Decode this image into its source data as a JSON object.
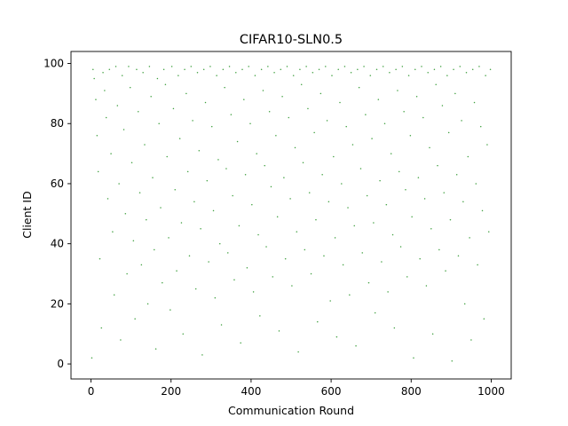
{
  "chart_data": {
    "type": "scatter",
    "title": "CIFAR10-SLN0.5",
    "xlabel": "Communication Round",
    "ylabel": "Client ID",
    "xlim": [
      -50,
      1050
    ],
    "ylim": [
      -5,
      104
    ],
    "xticks": [
      0,
      200,
      400,
      600,
      800,
      1000
    ],
    "yticks": [
      0,
      20,
      40,
      60,
      80,
      100
    ],
    "grid": false,
    "marker_color": "#008000",
    "series": [
      {
        "rounds": [
          0,
          999
        ],
        "client_ids": [
          0,
          99
        ],
        "density_note": "Client IDs near 99 are sampled almost every round; density decreases toward 0.",
        "points": [
          [
            2,
            2
          ],
          [
            5,
            98
          ],
          [
            8,
            95
          ],
          [
            12,
            88
          ],
          [
            15,
            76
          ],
          [
            18,
            64
          ],
          [
            22,
            35
          ],
          [
            26,
            12
          ],
          [
            30,
            97
          ],
          [
            34,
            91
          ],
          [
            38,
            82
          ],
          [
            42,
            55
          ],
          [
            46,
            98
          ],
          [
            50,
            70
          ],
          [
            54,
            44
          ],
          [
            58,
            23
          ],
          [
            62,
            99
          ],
          [
            66,
            86
          ],
          [
            70,
            60
          ],
          [
            74,
            8
          ],
          [
            78,
            96
          ],
          [
            82,
            78
          ],
          [
            86,
            50
          ],
          [
            90,
            30
          ],
          [
            94,
            99
          ],
          [
            98,
            92
          ],
          [
            102,
            67
          ],
          [
            106,
            41
          ],
          [
            110,
            15
          ],
          [
            114,
            98
          ],
          [
            118,
            84
          ],
          [
            122,
            57
          ],
          [
            126,
            33
          ],
          [
            130,
            97
          ],
          [
            134,
            73
          ],
          [
            138,
            48
          ],
          [
            142,
            20
          ],
          [
            146,
            99
          ],
          [
            150,
            89
          ],
          [
            154,
            62
          ],
          [
            158,
            38
          ],
          [
            162,
            5
          ],
          [
            166,
            95
          ],
          [
            170,
            80
          ],
          [
            174,
            52
          ],
          [
            178,
            27
          ],
          [
            182,
            98
          ],
          [
            186,
            93
          ],
          [
            190,
            69
          ],
          [
            194,
            42
          ],
          [
            198,
            18
          ],
          [
            202,
            99
          ],
          [
            206,
            85
          ],
          [
            210,
            58
          ],
          [
            214,
            31
          ],
          [
            218,
            96
          ],
          [
            222,
            75
          ],
          [
            226,
            47
          ],
          [
            230,
            10
          ],
          [
            234,
            98
          ],
          [
            238,
            90
          ],
          [
            242,
            64
          ],
          [
            246,
            36
          ],
          [
            250,
            99
          ],
          [
            254,
            81
          ],
          [
            258,
            54
          ],
          [
            262,
            25
          ],
          [
            266,
            97
          ],
          [
            270,
            71
          ],
          [
            274,
            45
          ],
          [
            278,
            3
          ],
          [
            282,
            98
          ],
          [
            286,
            87
          ],
          [
            290,
            61
          ],
          [
            294,
            34
          ],
          [
            298,
            99
          ],
          [
            302,
            79
          ],
          [
            306,
            51
          ],
          [
            310,
            22
          ],
          [
            314,
            96
          ],
          [
            318,
            68
          ],
          [
            322,
            40
          ],
          [
            326,
            13
          ],
          [
            330,
            98
          ],
          [
            334,
            92
          ],
          [
            338,
            65
          ],
          [
            342,
            37
          ],
          [
            346,
            99
          ],
          [
            350,
            83
          ],
          [
            354,
            56
          ],
          [
            358,
            28
          ],
          [
            362,
            97
          ],
          [
            366,
            74
          ],
          [
            370,
            46
          ],
          [
            374,
            7
          ],
          [
            378,
            98
          ],
          [
            382,
            88
          ],
          [
            386,
            63
          ],
          [
            390,
            32
          ],
          [
            394,
            99
          ],
          [
            398,
            80
          ],
          [
            402,
            53
          ],
          [
            406,
            24
          ],
          [
            410,
            96
          ],
          [
            414,
            70
          ],
          [
            418,
            43
          ],
          [
            422,
            16
          ],
          [
            426,
            98
          ],
          [
            430,
            91
          ],
          [
            434,
            66
          ],
          [
            438,
            39
          ],
          [
            442,
            99
          ],
          [
            446,
            84
          ],
          [
            450,
            59
          ],
          [
            454,
            29
          ],
          [
            458,
            97
          ],
          [
            462,
            76
          ],
          [
            466,
            49
          ],
          [
            470,
            11
          ],
          [
            474,
            98
          ],
          [
            478,
            89
          ],
          [
            482,
            62
          ],
          [
            486,
            35
          ],
          [
            490,
            99
          ],
          [
            494,
            82
          ],
          [
            498,
            55
          ],
          [
            502,
            26
          ],
          [
            506,
            96
          ],
          [
            510,
            72
          ],
          [
            514,
            44
          ],
          [
            518,
            4
          ],
          [
            522,
            98
          ],
          [
            526,
            93
          ],
          [
            530,
            67
          ],
          [
            534,
            38
          ],
          [
            538,
            99
          ],
          [
            542,
            85
          ],
          [
            546,
            57
          ],
          [
            550,
            30
          ],
          [
            554,
            97
          ],
          [
            558,
            77
          ],
          [
            562,
            48
          ],
          [
            566,
            14
          ],
          [
            570,
            98
          ],
          [
            574,
            90
          ],
          [
            578,
            63
          ],
          [
            582,
            36
          ],
          [
            586,
            99
          ],
          [
            590,
            81
          ],
          [
            594,
            54
          ],
          [
            598,
            21
          ],
          [
            602,
            96
          ],
          [
            606,
            69
          ],
          [
            610,
            42
          ],
          [
            614,
            9
          ],
          [
            618,
            98
          ],
          [
            622,
            87
          ],
          [
            626,
            60
          ],
          [
            630,
            33
          ],
          [
            634,
            99
          ],
          [
            638,
            79
          ],
          [
            642,
            52
          ],
          [
            646,
            23
          ],
          [
            650,
            97
          ],
          [
            654,
            73
          ],
          [
            658,
            46
          ],
          [
            662,
            6
          ],
          [
            666,
            98
          ],
          [
            670,
            92
          ],
          [
            674,
            65
          ],
          [
            678,
            37
          ],
          [
            682,
            99
          ],
          [
            686,
            83
          ],
          [
            690,
            56
          ],
          [
            694,
            27
          ],
          [
            698,
            96
          ],
          [
            702,
            75
          ],
          [
            706,
            47
          ],
          [
            710,
            17
          ],
          [
            714,
            98
          ],
          [
            718,
            88
          ],
          [
            722,
            61
          ],
          [
            726,
            34
          ],
          [
            730,
            99
          ],
          [
            734,
            80
          ],
          [
            738,
            53
          ],
          [
            742,
            24
          ],
          [
            746,
            97
          ],
          [
            750,
            70
          ],
          [
            754,
            43
          ],
          [
            758,
            12
          ],
          [
            762,
            98
          ],
          [
            766,
            91
          ],
          [
            770,
            64
          ],
          [
            774,
            39
          ],
          [
            778,
            99
          ],
          [
            782,
            84
          ],
          [
            786,
            58
          ],
          [
            790,
            29
          ],
          [
            794,
            96
          ],
          [
            798,
            76
          ],
          [
            802,
            49
          ],
          [
            806,
            2
          ],
          [
            810,
            98
          ],
          [
            814,
            89
          ],
          [
            818,
            62
          ],
          [
            822,
            35
          ],
          [
            826,
            99
          ],
          [
            830,
            82
          ],
          [
            834,
            55
          ],
          [
            838,
            26
          ],
          [
            842,
            97
          ],
          [
            846,
            72
          ],
          [
            850,
            45
          ],
          [
            854,
            10
          ],
          [
            858,
            98
          ],
          [
            862,
            93
          ],
          [
            866,
            66
          ],
          [
            870,
            38
          ],
          [
            874,
            99
          ],
          [
            878,
            86
          ],
          [
            882,
            57
          ],
          [
            886,
            31
          ],
          [
            890,
            96
          ],
          [
            894,
            77
          ],
          [
            898,
            48
          ],
          [
            902,
            1
          ],
          [
            906,
            98
          ],
          [
            910,
            90
          ],
          [
            914,
            63
          ],
          [
            918,
            36
          ],
          [
            922,
            99
          ],
          [
            926,
            81
          ],
          [
            930,
            54
          ],
          [
            934,
            20
          ],
          [
            938,
            97
          ],
          [
            942,
            69
          ],
          [
            946,
            42
          ],
          [
            950,
            8
          ],
          [
            954,
            98
          ],
          [
            958,
            87
          ],
          [
            962,
            60
          ],
          [
            966,
            33
          ],
          [
            970,
            99
          ],
          [
            974,
            79
          ],
          [
            978,
            51
          ],
          [
            982,
            15
          ],
          [
            986,
            96
          ],
          [
            990,
            73
          ],
          [
            994,
            44
          ],
          [
            998,
            98
          ]
        ]
      }
    ]
  }
}
